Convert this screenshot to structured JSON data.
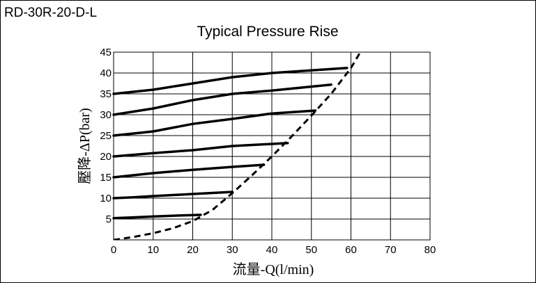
{
  "model": "RD-30R-20-D-L",
  "chart_data": {
    "type": "line",
    "title": "Typical Pressure Rise",
    "xlabel": "流量-Q(l/min)",
    "ylabel": "壓降-ΔP(bar)",
    "xlim": [
      0,
      80
    ],
    "ylim": [
      0,
      45
    ],
    "xticks": [
      0,
      10,
      20,
      30,
      40,
      50,
      60,
      70,
      80
    ],
    "yticks": [
      5,
      10,
      15,
      20,
      25,
      30,
      35,
      40,
      45
    ],
    "grid": true,
    "series": [
      {
        "style": "solid",
        "points": [
          [
            0,
            5.2
          ],
          [
            5,
            5.4
          ],
          [
            10,
            5.6
          ],
          [
            15,
            5.8
          ],
          [
            22,
            6
          ]
        ]
      },
      {
        "style": "solid",
        "points": [
          [
            0,
            10
          ],
          [
            5,
            10.2
          ],
          [
            10,
            10.5
          ],
          [
            20,
            11
          ],
          [
            30,
            11.5
          ]
        ]
      },
      {
        "style": "solid",
        "points": [
          [
            0,
            15
          ],
          [
            10,
            16
          ],
          [
            20,
            16.8
          ],
          [
            30,
            17.5
          ],
          [
            38,
            18
          ]
        ]
      },
      {
        "style": "solid",
        "points": [
          [
            0,
            20
          ],
          [
            10,
            20.8
          ],
          [
            20,
            21.5
          ],
          [
            30,
            22.5
          ],
          [
            40,
            23
          ],
          [
            44,
            23.2
          ]
        ]
      },
      {
        "style": "solid",
        "points": [
          [
            0,
            25
          ],
          [
            10,
            26
          ],
          [
            20,
            27.8
          ],
          [
            30,
            29
          ],
          [
            40,
            30.3
          ],
          [
            51,
            31
          ]
        ]
      },
      {
        "style": "solid",
        "points": [
          [
            0,
            30
          ],
          [
            10,
            31.5
          ],
          [
            20,
            33.5
          ],
          [
            30,
            35
          ],
          [
            40,
            35.8
          ],
          [
            55,
            37.2
          ]
        ]
      },
      {
        "style": "solid",
        "points": [
          [
            0,
            35
          ],
          [
            10,
            36
          ],
          [
            20,
            37.5
          ],
          [
            30,
            39
          ],
          [
            40,
            40
          ],
          [
            59,
            41.2
          ]
        ]
      },
      {
        "style": "dashed",
        "points": [
          [
            0,
            0
          ],
          [
            5,
            0.7
          ],
          [
            10,
            1.6
          ],
          [
            15,
            2.8
          ],
          [
            20,
            4.5
          ],
          [
            25,
            7.2
          ],
          [
            30,
            11.2
          ],
          [
            35,
            15.5
          ],
          [
            40,
            20
          ],
          [
            45,
            24.8
          ],
          [
            50,
            29.8
          ],
          [
            55,
            35
          ],
          [
            60,
            41.2
          ],
          [
            63,
            46
          ]
        ]
      }
    ]
  }
}
